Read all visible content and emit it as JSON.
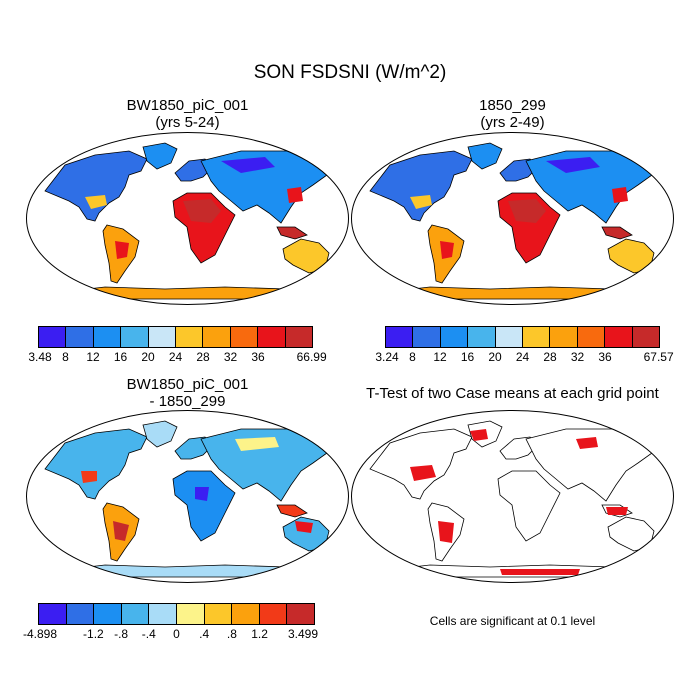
{
  "title": "SON FSDSNI (W/m^2)",
  "panels": {
    "top_left": {
      "title": "BW1850_piC_001",
      "subtitle": "(yrs 5-24)"
    },
    "top_right": {
      "title": "1850_299",
      "subtitle": "(yrs 2-49)"
    },
    "bottom_left": {
      "title": "BW1850_piC_001",
      "subtitle": "- 1850_299"
    },
    "bottom_right": {
      "title": "T-Test of two Case means at each grid point"
    }
  },
  "colorbars": {
    "top_left": {
      "colors": [
        "#3b1ef2",
        "#2f6fe6",
        "#1c8ff2",
        "#48b4ec",
        "#c9e6f7",
        "#fcc72a",
        "#fba10d",
        "#f86a0e",
        "#e8141b",
        "#c62a2a"
      ],
      "labels": [
        "3.48",
        "8",
        "12",
        "16",
        "20",
        "24",
        "28",
        "32",
        "36",
        "66.99"
      ]
    },
    "top_right": {
      "colors": [
        "#3b1ef2",
        "#2f6fe6",
        "#1c8ff2",
        "#48b4ec",
        "#c9e6f7",
        "#fcc72a",
        "#fba10d",
        "#f86a0e",
        "#e8141b",
        "#c62a2a"
      ],
      "labels": [
        "3.24",
        "8",
        "12",
        "16",
        "20",
        "24",
        "28",
        "32",
        "36",
        "67.57"
      ]
    },
    "bottom_left": {
      "colors": [
        "#3b1ef2",
        "#2f6fe6",
        "#1c8ff2",
        "#48b4ec",
        "#a9dcf7",
        "#fcf38a",
        "#fcc72a",
        "#fba10d",
        "#f23a18",
        "#c62a2a"
      ],
      "labels": [
        "-4.898",
        "-1.2",
        "-.8",
        "-.4",
        "0",
        ".4",
        ".8",
        "1.2",
        "3.499"
      ]
    }
  },
  "footnote": "Cells are significant at 0.1 level",
  "colors": {
    "significant": "#e8141b",
    "land_outline": "#000000"
  }
}
